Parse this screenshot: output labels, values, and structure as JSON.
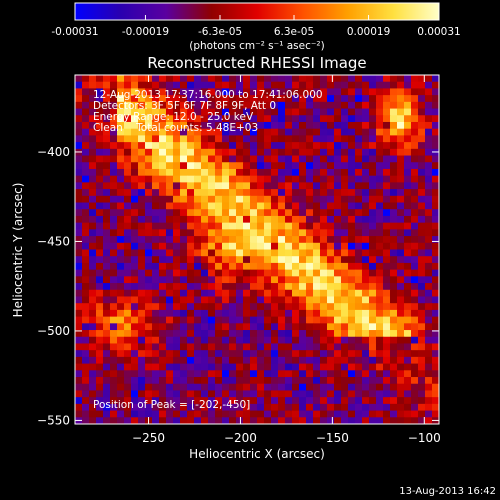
{
  "colorbar": {
    "tick_labels": [
      "-0.00031",
      "-0.00019",
      "-6.3e-05",
      "6.3e-05",
      "0.00019",
      "0.00031"
    ],
    "tick_values": [
      -0.00031,
      -0.00019,
      -6.3e-05,
      6.3e-05,
      0.00019,
      0.00031
    ],
    "range": [
      -0.00031,
      0.00031
    ],
    "unit_label": "(photons cm⁻² s⁻¹ asec⁻²)",
    "colormap": [
      "#0000ff",
      "#2a00b0",
      "#5a00a0",
      "#900000",
      "#e00000",
      "#ff5000",
      "#ffa000",
      "#ffe040",
      "#ffffc8"
    ]
  },
  "chart_data": {
    "type": "heatmap",
    "title": "Reconstructed RHESSI Image",
    "xlabel": "Heliocentric X (arcsec)",
    "ylabel": "Heliocentric Y (arcsec)",
    "xlim": [
      -290,
      -92
    ],
    "ylim": [
      -552,
      -357
    ],
    "x_ticks": [
      -250,
      -200,
      -150,
      -100
    ],
    "x_tick_labels": [
      "−250",
      "−200",
      "−150",
      "−100"
    ],
    "y_ticks": [
      -400,
      -450,
      -500,
      -550
    ],
    "y_tick_labels": [
      "−400",
      "−450",
      "−500",
      "−550"
    ],
    "annotations": [
      "12-Aug-2013 17:37:16.000 to 17:41:06.000",
      "Detectors: 3F 5F 6F 7F 8F 9F, Att 0",
      "Energy Range: 12.0 - 25.0 keV",
      "Clean    Total counts: 5.48E+03"
    ],
    "peak_label": "Position of Peak = [-202,-450]",
    "peak": [
      -202,
      -450
    ]
  },
  "footer": {
    "timestamp": "13-Aug-2013 16:42"
  }
}
